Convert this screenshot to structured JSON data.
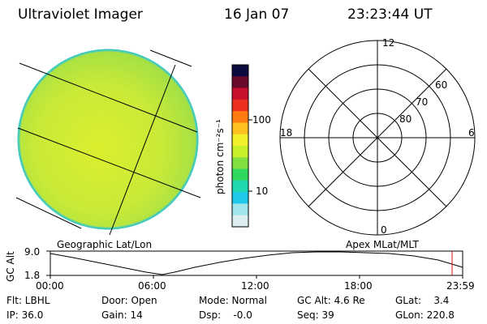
{
  "header": {
    "instrument": "Ultraviolet Imager",
    "date": "16 Jan 07",
    "time": "23:23:44 UT"
  },
  "colorbar": {
    "unit_label": "photon cm⁻²s⁻¹",
    "ticks": [
      "100",
      "10"
    ],
    "colors": [
      "#0b0b40",
      "#6a0b2a",
      "#c8102e",
      "#ee3020",
      "#ff7a10",
      "#ffc020",
      "#f0ef2a",
      "#c8f028",
      "#7fe040",
      "#30d860",
      "#20d8b0",
      "#20c8e8",
      "#a0e4ec",
      "#dceef0"
    ]
  },
  "polar": {
    "labels": {
      "top": "12",
      "bottom": "0",
      "left": "18",
      "right": "6"
    },
    "rings": [
      "80",
      "70",
      "60"
    ]
  },
  "panel_labels": {
    "left": "Geographic Lat/Lon",
    "right": "Apex MLat/MLT"
  },
  "gc_alt_plot": {
    "ylabel": "GC Alt",
    "ytick_top": "9.0",
    "ytick_bottom": "1.8",
    "xticks": [
      "00:00",
      "06:00",
      "12:00",
      "18:00",
      "23:59"
    ]
  },
  "status": {
    "flt": "Flt: LBHL",
    "ip": "IP: 36.0",
    "door": "Door: Open",
    "gain": "Gain: 14",
    "mode": "Mode: Normal",
    "dsp": "Dsp:    -0.0",
    "gcalt": "GC Alt: 4.6 Re",
    "seq": "Seq: 39",
    "glat": "GLat:    3.4",
    "glon": "GLon: 220.8"
  }
}
